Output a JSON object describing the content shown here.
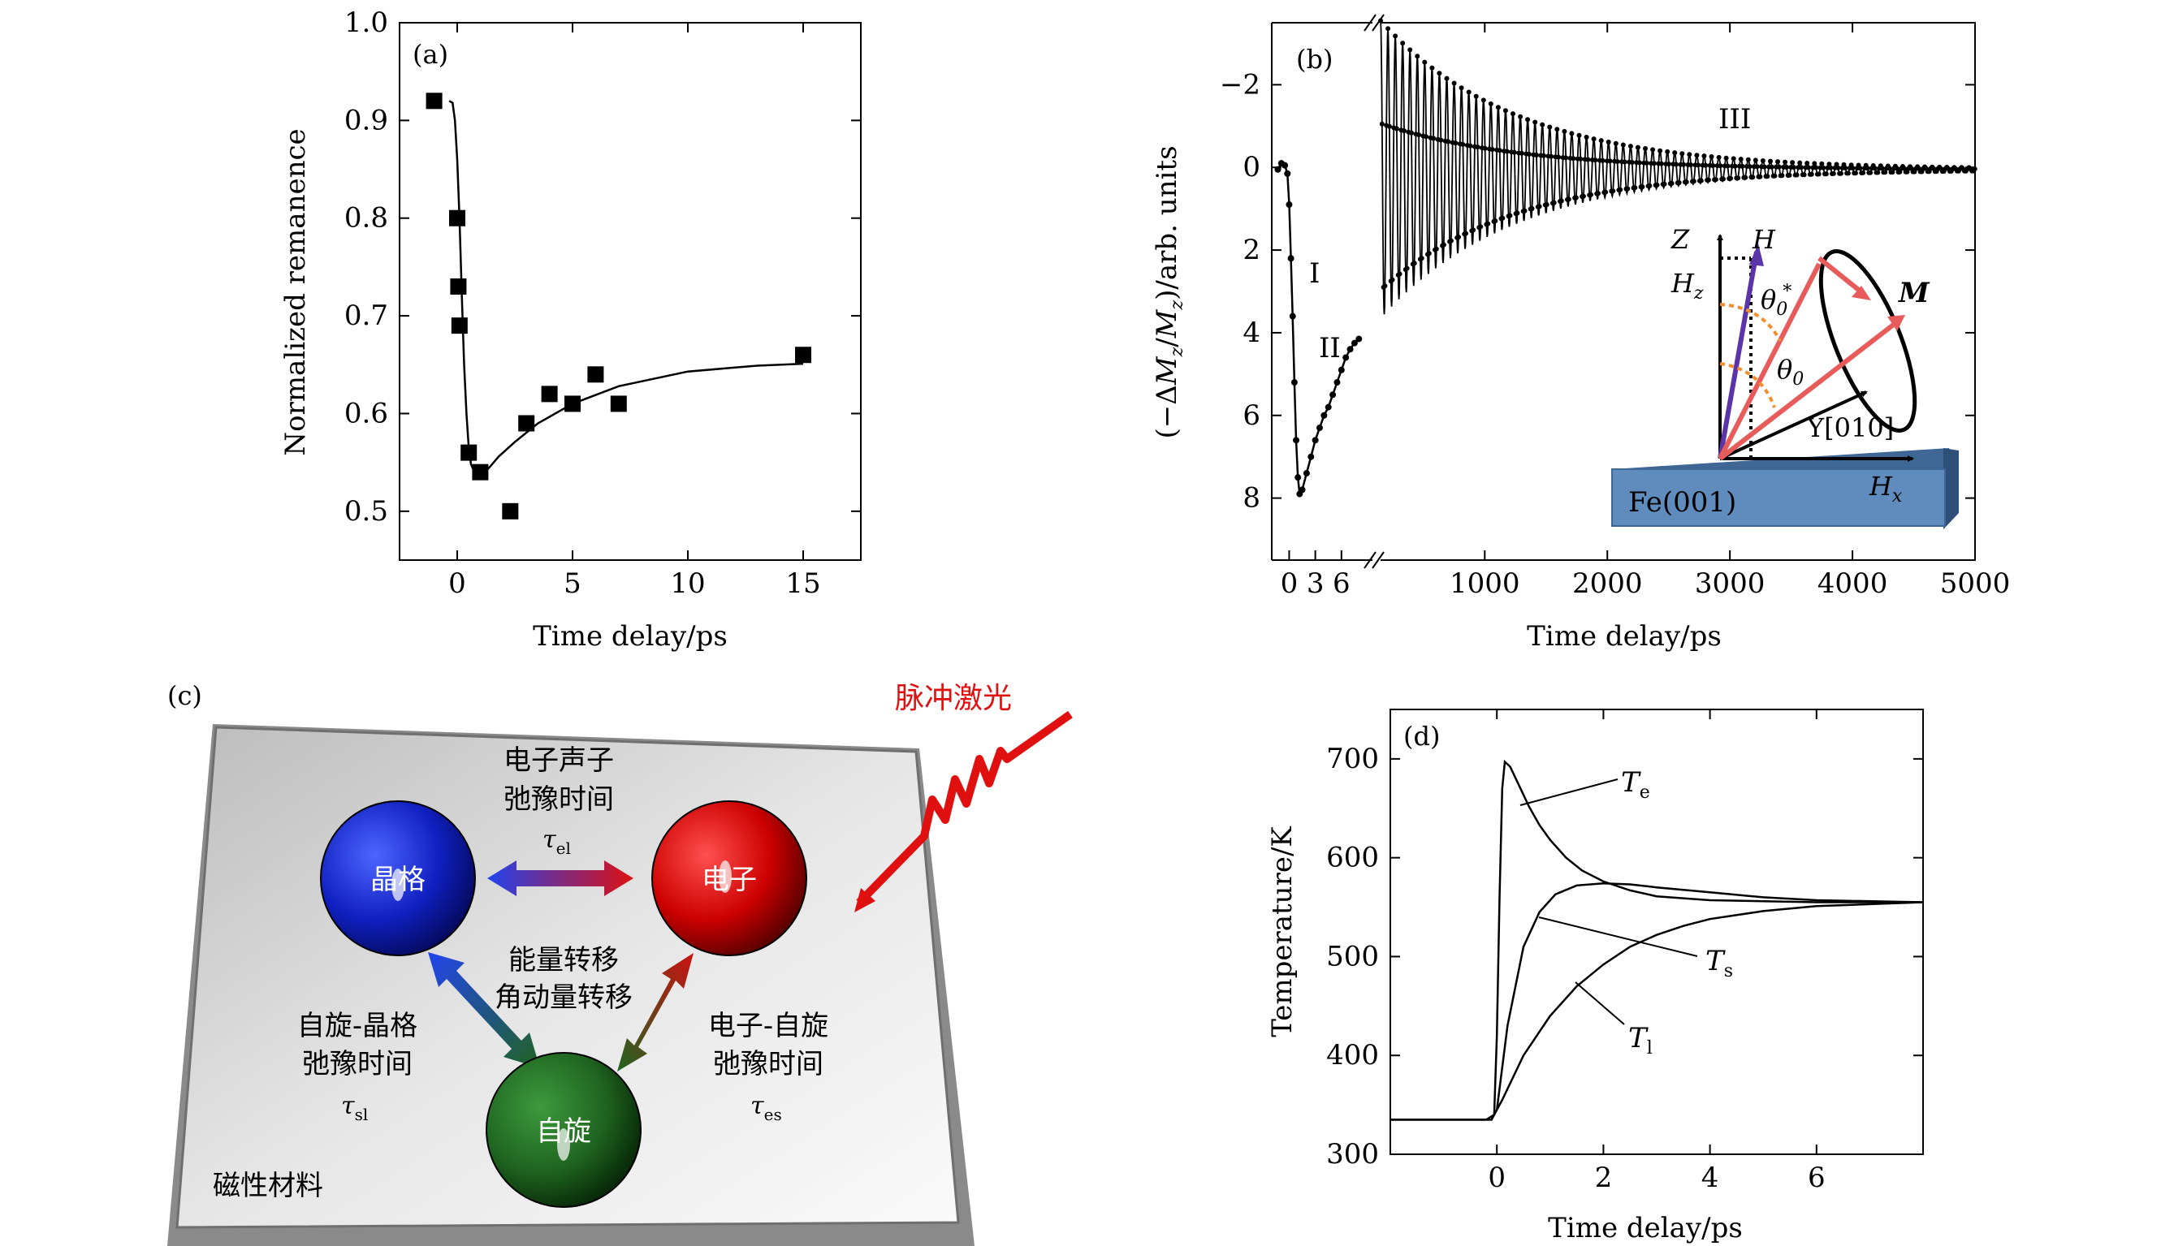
{
  "panels": {
    "a": {
      "label": "(a)"
    },
    "b": {
      "label": "(b)"
    },
    "c": {
      "label": "(c)"
    },
    "d": {
      "label": "(d)"
    }
  },
  "chart_data": [
    {
      "panel": "(a)",
      "type": "scatter",
      "xlabel": "Time delay/ps",
      "ylabel": "Normalized remanence",
      "xlim": [
        -2.5,
        17.5
      ],
      "ylim": [
        0.45,
        1.0
      ],
      "xticks": [
        0,
        5,
        10,
        15
      ],
      "yticks": [
        0.5,
        0.6,
        0.7,
        0.8,
        0.9,
        1.0
      ],
      "ytick_labels": [
        "0.5",
        "0.6",
        "0.7",
        "0.8",
        "0.9",
        "1.0"
      ],
      "points": [
        {
          "x": -1.0,
          "y": 0.92
        },
        {
          "x": 0.0,
          "y": 0.8
        },
        {
          "x": 0.05,
          "y": 0.73
        },
        {
          "x": 0.1,
          "y": 0.69
        },
        {
          "x": 0.5,
          "y": 0.56
        },
        {
          "x": 1.0,
          "y": 0.54
        },
        {
          "x": 2.3,
          "y": 0.5
        },
        {
          "x": 3.0,
          "y": 0.59
        },
        {
          "x": 4.0,
          "y": 0.62
        },
        {
          "x": 5.0,
          "y": 0.61
        },
        {
          "x": 6.0,
          "y": 0.64
        },
        {
          "x": 7.0,
          "y": 0.61
        },
        {
          "x": 15.0,
          "y": 0.66
        }
      ],
      "fit_curve": [
        [
          -0.35,
          0.92
        ],
        [
          -0.2,
          0.918
        ],
        [
          -0.1,
          0.9
        ],
        [
          0,
          0.86
        ],
        [
          0.1,
          0.8
        ],
        [
          0.2,
          0.72
        ],
        [
          0.3,
          0.65
        ],
        [
          0.4,
          0.6
        ],
        [
          0.5,
          0.565
        ],
        [
          0.6,
          0.548
        ],
        [
          0.75,
          0.54
        ],
        [
          0.9,
          0.537
        ],
        [
          1.1,
          0.538
        ],
        [
          1.4,
          0.545
        ],
        [
          1.8,
          0.556
        ],
        [
          2.5,
          0.571
        ],
        [
          3.5,
          0.59
        ],
        [
          5,
          0.61
        ],
        [
          7,
          0.628
        ],
        [
          10,
          0.643
        ],
        [
          13,
          0.649
        ],
        [
          15,
          0.651
        ]
      ]
    },
    {
      "panel": "(b)",
      "type": "scatter",
      "xlabel": "Time delay/ps",
      "ylabel_parts": [
        "(−Δ",
        "M",
        "z",
        "/",
        "M",
        "z",
        ")/arb. units"
      ],
      "ylim": [
        9.5,
        -3.5
      ],
      "yticks": [
        -2,
        0,
        2,
        4,
        6,
        8
      ],
      "ytick_labels": [
        "−2",
        "0",
        "2",
        "4",
        "6",
        "8"
      ],
      "short_axis_xlim": [
        -2,
        9
      ],
      "short_axis_ticks": [
        0,
        3,
        6
      ],
      "long_axis_xlim": [
        150,
        5000
      ],
      "long_axis_ticks": [
        1000,
        2000,
        3000,
        4000,
        5000
      ],
      "region_labels": [
        "I",
        "II",
        "III"
      ],
      "short_segment": [
        [
          -1.3,
          0.05
        ],
        [
          -0.9,
          -0.1
        ],
        [
          -0.5,
          -0.05
        ],
        [
          -0.2,
          0.15
        ],
        [
          0.0,
          0.9
        ],
        [
          0.2,
          2.2
        ],
        [
          0.4,
          3.6
        ],
        [
          0.6,
          5.2
        ],
        [
          0.8,
          6.6
        ],
        [
          1.0,
          7.5
        ],
        [
          1.2,
          7.9
        ],
        [
          1.5,
          7.8
        ],
        [
          2,
          7.4
        ],
        [
          2.5,
          7.0
        ],
        [
          3,
          6.6
        ],
        [
          3.5,
          6.3
        ],
        [
          4,
          6.0
        ],
        [
          4.5,
          5.8
        ],
        [
          5,
          5.5
        ],
        [
          5.5,
          5.2
        ],
        [
          6,
          4.9
        ],
        [
          6.5,
          4.6
        ],
        [
          7,
          4.4
        ],
        [
          7.5,
          4.25
        ],
        [
          8,
          4.15
        ]
      ],
      "oscillation": {
        "oscillation_center": 0.05,
        "initial_amplitude": 3.6,
        "decay_time_ps": 1100,
        "period_ps": 60,
        "t_start_ps": 150,
        "t_end_ps": 5000
      },
      "inset_labels": {
        "z_axis": "Z",
        "field": "H",
        "field_z": "H",
        "field_z_sub": "z",
        "theta0_star": "θ",
        "theta0_star_sub": "0",
        "theta0_star_sup": "*",
        "theta0": "θ",
        "theta0_sub": "0",
        "magnetization": "M",
        "y_axis": "Y[010]",
        "field_x": "H",
        "field_x_sub": "x",
        "substrate": "Fe(001)"
      }
    },
    {
      "panel": "(d)",
      "type": "line",
      "xlabel": "Time delay/ps",
      "ylabel": "Temperature/K",
      "xlim": [
        -2,
        8
      ],
      "ylim": [
        300,
        750
      ],
      "xticks": [
        0,
        2,
        4,
        6
      ],
      "yticks": [
        300,
        400,
        500,
        600,
        700
      ],
      "series": [
        {
          "name": "T",
          "name_sub": "e",
          "points": [
            [
              -2,
              335
            ],
            [
              -0.2,
              335
            ],
            [
              -0.05,
              340
            ],
            [
              0,
              420
            ],
            [
              0.05,
              560
            ],
            [
              0.1,
              670
            ],
            [
              0.15,
              697
            ],
            [
              0.25,
              692
            ],
            [
              0.4,
              675
            ],
            [
              0.6,
              652
            ],
            [
              0.8,
              633
            ],
            [
              1,
              618
            ],
            [
              1.3,
              600
            ],
            [
              1.6,
              587
            ],
            [
              2,
              576
            ],
            [
              2.5,
              567
            ],
            [
              3,
              561
            ],
            [
              4,
              557
            ],
            [
              5,
              556
            ],
            [
              6,
              555
            ],
            [
              8,
              555
            ]
          ]
        },
        {
          "name": "T",
          "name_sub": "s",
          "points": [
            [
              -2,
              335
            ],
            [
              -0.1,
              335
            ],
            [
              0,
              345
            ],
            [
              0.2,
              430
            ],
            [
              0.5,
              510
            ],
            [
              0.8,
              545
            ],
            [
              1.1,
              563
            ],
            [
              1.5,
              572
            ],
            [
              2,
              574
            ],
            [
              2.5,
              573
            ],
            [
              3,
              570
            ],
            [
              4,
              565
            ],
            [
              5,
              560
            ],
            [
              6,
              557
            ],
            [
              8,
              555
            ]
          ]
        },
        {
          "name": "T",
          "name_sub": "l",
          "points": [
            [
              -2,
              335
            ],
            [
              -0.1,
              335
            ],
            [
              0.1,
              355
            ],
            [
              0.5,
              400
            ],
            [
              1,
              440
            ],
            [
              1.5,
              470
            ],
            [
              2,
              492
            ],
            [
              2.5,
              510
            ],
            [
              3,
              522
            ],
            [
              3.5,
              531
            ],
            [
              4,
              538
            ],
            [
              5,
              546
            ],
            [
              6,
              551
            ],
            [
              7,
              553
            ],
            [
              8,
              555
            ]
          ]
        }
      ]
    }
  ],
  "diagram_c": {
    "pulse_label": "脉冲激光",
    "electron_phonon_line1": "电子声子",
    "electron_phonon_line2": "弛豫时间",
    "tau_el_symbol": "τ",
    "tau_el_sub": "el",
    "lattice": "晶格",
    "electron": "电子",
    "spin": "自旋",
    "energy_transfer": "能量转移",
    "angular_transfer": "角动量转移",
    "spin_lattice_line1": "自旋-晶格",
    "spin_lattice_line2": "弛豫时间",
    "tau_sl_symbol": "τ",
    "tau_sl_sub": "sl",
    "electron_spin_line1": "电子-自旋",
    "electron_spin_line2": "弛豫时间",
    "tau_es_symbol": "τ",
    "tau_es_sub": "es",
    "material": "磁性材料"
  }
}
